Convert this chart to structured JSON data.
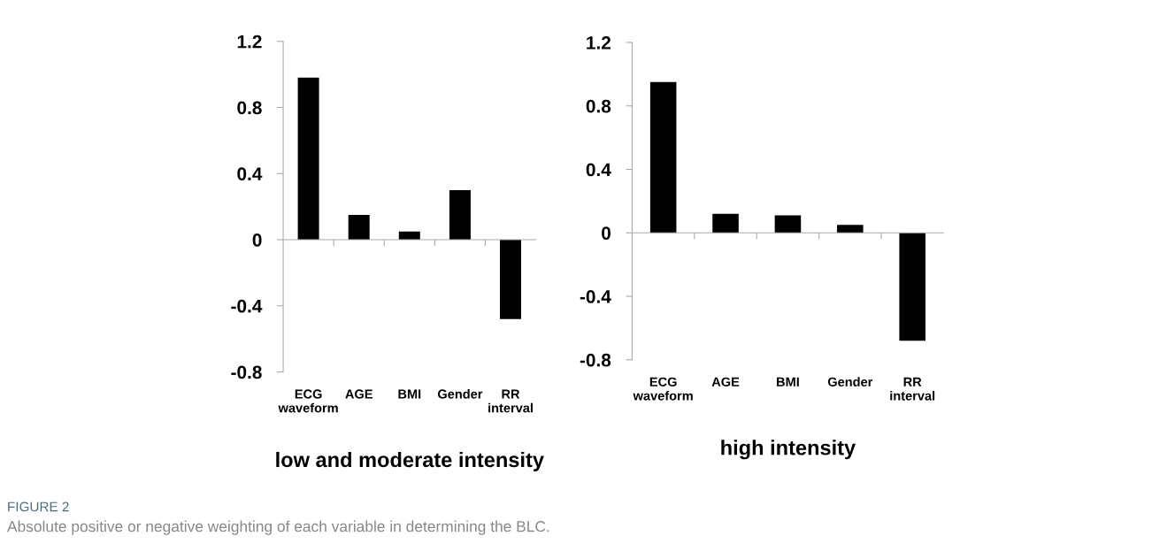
{
  "chart_data": [
    {
      "type": "bar",
      "xlabel": "low and moderate intensity",
      "categories": [
        "ECG\nwaveform",
        "AGE",
        "BMI",
        "Gender",
        "RR\ninterval"
      ],
      "values": [
        0.98,
        0.15,
        0.05,
        0.3,
        -0.48
      ],
      "color": "#000000",
      "ylim": [
        -0.8,
        1.2
      ],
      "yticks": [
        -0.8,
        -0.4,
        0,
        0.4,
        0.8,
        1.2
      ],
      "annotations": [
        "FIGURE 2",
        "Absolute positive or negative weighting of each variable in determining the BLC."
      ]
    },
    {
      "type": "bar",
      "xlabel": "high intensity",
      "categories": [
        "ECG\nwaveform",
        "AGE",
        "BMI",
        "Gender",
        "RR\ninterval"
      ],
      "values": [
        0.95,
        0.12,
        0.11,
        0.05,
        -0.68
      ],
      "color": "#000000",
      "ylim": [
        -0.8,
        1.2
      ],
      "yticks": [
        -0.8,
        -0.4,
        0,
        0.4,
        0.8,
        1.2
      ]
    }
  ]
}
